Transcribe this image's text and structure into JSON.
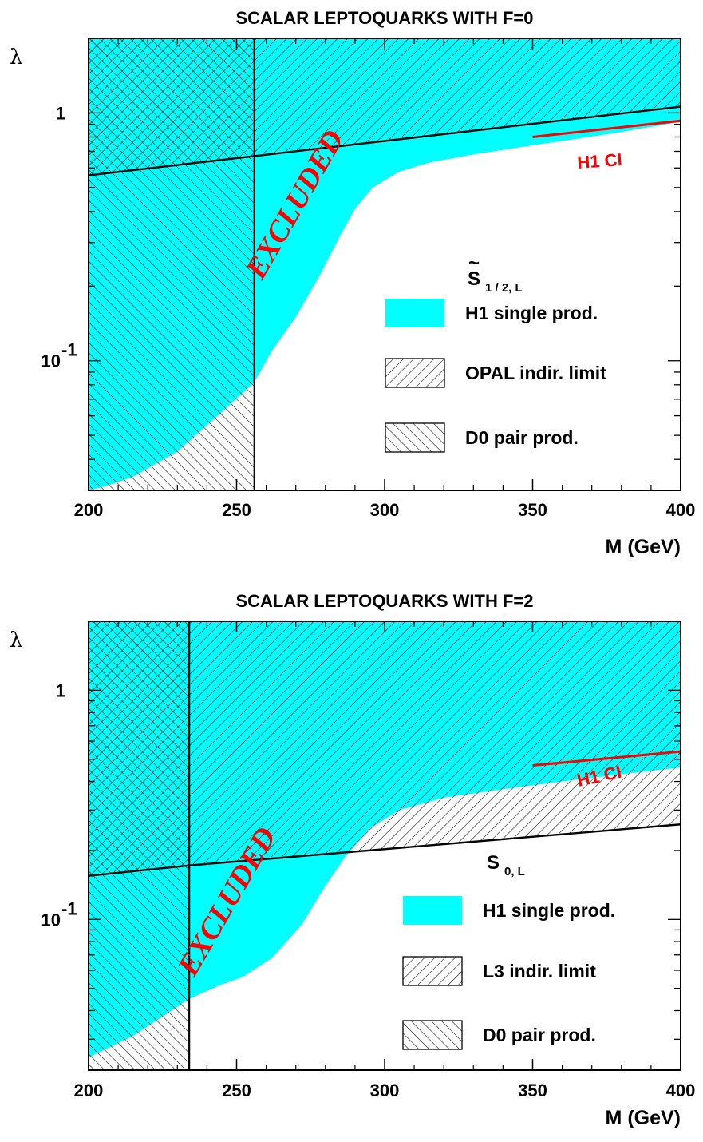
{
  "chart_data": [
    {
      "type": "area",
      "title": "SCALAR LEPTOQUARKS WITH F=0",
      "xlabel": "M (GeV)",
      "ylabel": "λ",
      "xlim": [
        200,
        400
      ],
      "ylim": [
        0.03,
        2.0
      ],
      "yscale": "log",
      "x_ticks": [
        "200",
        "250",
        "300",
        "350",
        "400"
      ],
      "y_ticks": [
        {
          "value": 1,
          "label": "1"
        },
        {
          "value": 0.1,
          "label": "10",
          "exp": "-1"
        }
      ],
      "model_label": {
        "main": "S",
        "accent": "~",
        "sub": "1 / 2, L"
      },
      "series": [
        {
          "name": "H1 single prod.",
          "x": [
            200,
            205,
            215,
            230,
            245,
            256,
            262,
            270,
            278,
            285,
            290,
            296,
            305,
            315,
            330,
            350,
            375,
            400
          ],
          "y": [
            0.03,
            0.031,
            0.034,
            0.043,
            0.062,
            0.082,
            0.11,
            0.15,
            0.22,
            0.32,
            0.41,
            0.5,
            0.58,
            0.63,
            0.68,
            0.74,
            0.82,
            0.92
          ]
        },
        {
          "name": "OPAL indir. limit",
          "x": [
            200,
            256,
            400
          ],
          "y": [
            0.56,
            0.67,
            1.06
          ]
        },
        {
          "name": "D0 pair prod.",
          "xmax": 256
        }
      ],
      "curves": [
        {
          "name": "H1 CI",
          "x": [
            350,
            400
          ],
          "y": [
            0.8,
            0.93
          ]
        }
      ],
      "annotations": [
        "EXCLUDED"
      ]
    },
    {
      "type": "area",
      "title": "SCALAR LEPTOQUARKS WITH F=2",
      "xlabel": "M (GeV)",
      "ylabel": "λ",
      "xlim": [
        200,
        400
      ],
      "ylim": [
        0.022,
        2.0
      ],
      "yscale": "log",
      "x_ticks": [
        "200",
        "250",
        "300",
        "350",
        "400"
      ],
      "y_ticks": [
        {
          "value": 1,
          "label": "1"
        },
        {
          "value": 0.1,
          "label": "10",
          "exp": "-1"
        }
      ],
      "model_label": {
        "main": "S",
        "accent": "",
        "sub": "0, L"
      },
      "series": [
        {
          "name": "H1 single prod.",
          "x": [
            200,
            215,
            234,
            245,
            252,
            262,
            272,
            280,
            287,
            295,
            305,
            320,
            340,
            360,
            380,
            400
          ],
          "y": [
            0.025,
            0.031,
            0.045,
            0.052,
            0.056,
            0.068,
            0.095,
            0.14,
            0.19,
            0.25,
            0.3,
            0.34,
            0.37,
            0.4,
            0.43,
            0.46
          ]
        },
        {
          "name": "L3 indir. limit",
          "x": [
            200,
            234,
            400
          ],
          "y": [
            0.155,
            0.172,
            0.26
          ]
        },
        {
          "name": "D0 pair prod.",
          "xmax": 234
        }
      ],
      "curves": [
        {
          "name": "H1 CI",
          "x": [
            350,
            400
          ],
          "y": [
            0.47,
            0.54
          ]
        }
      ],
      "annotations": [
        "EXCLUDED"
      ]
    }
  ]
}
